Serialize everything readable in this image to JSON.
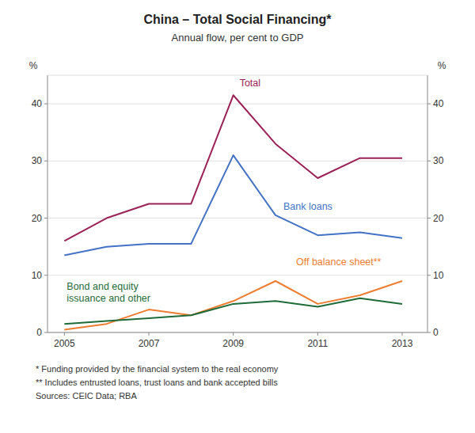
{
  "chart_data": {
    "type": "line",
    "title": "China – Total Social Financing*",
    "subtitle": "Annual flow, per cent to GDP",
    "notes": [
      "*    Funding provided by the financial system to the real economy",
      "**  Includes entrusted loans, trust loans and bank accepted bills",
      "Sources: CEIC Data; RBA"
    ],
    "x": [
      2005,
      2006,
      2007,
      2008,
      2009,
      2010,
      2011,
      2012,
      2013
    ],
    "series": [
      {
        "name": "Total",
        "color": "#9B2257",
        "values": [
          16.0,
          20.0,
          22.5,
          22.5,
          41.5,
          33.0,
          27.0,
          30.5,
          30.5
        ]
      },
      {
        "name": "Bank loans",
        "color": "#4472C4",
        "values": [
          13.5,
          15.0,
          15.5,
          15.5,
          31.0,
          20.5,
          17.0,
          17.5,
          16.5
        ]
      },
      {
        "name": "Off balance sheet**",
        "color": "#ED7D31",
        "values": [
          0.5,
          1.5,
          4.0,
          3.0,
          5.5,
          9.0,
          5.0,
          6.5,
          9.0
        ]
      },
      {
        "name": "Bond and equity\nissuance and other",
        "color": "#1F6B3A",
        "values": [
          1.5,
          2.0,
          2.5,
          3.0,
          5.0,
          5.5,
          4.5,
          6.0,
          5.0
        ]
      }
    ],
    "xlim": [
      2004.6,
      2013.6
    ],
    "xticks": [
      2005,
      2007,
      2009,
      2011,
      2013
    ],
    "ylim": [
      0,
      45
    ],
    "yticks": [
      0,
      10,
      20,
      30,
      40
    ],
    "y2lim": [
      0,
      45
    ],
    "y2ticks": [
      0,
      10,
      20,
      30,
      40
    ],
    "y_label": "%",
    "y2_label": "%",
    "grid": true
  }
}
